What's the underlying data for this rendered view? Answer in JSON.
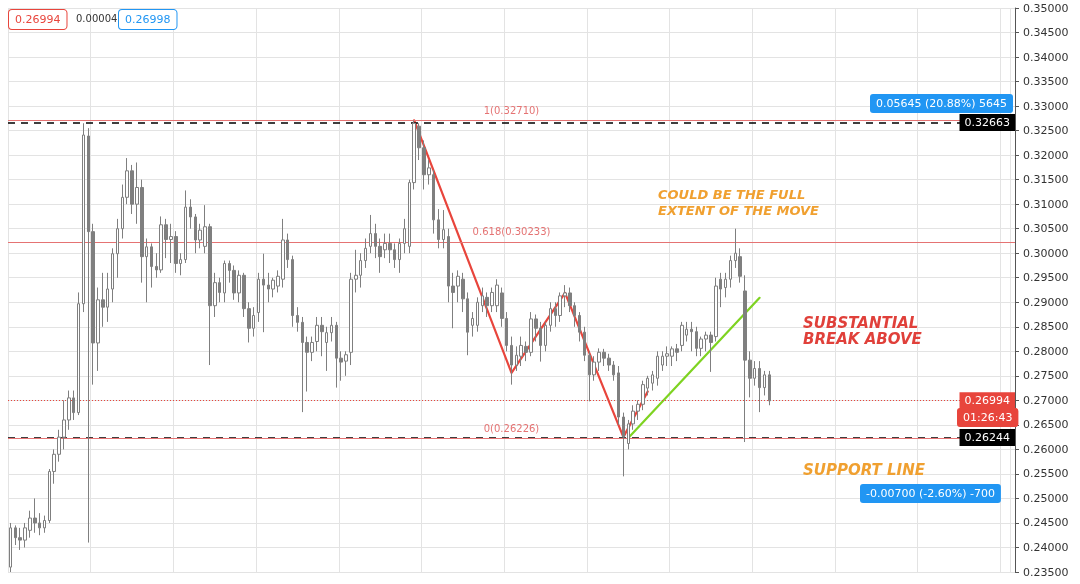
{
  "chart_data": {
    "type": "candlestick",
    "categories": [
      null,
      null,
      null,
      null,
      null,
      null,
      null,
      null,
      null,
      null,
      null,
      null,
      null,
      null,
      null,
      null,
      null,
      null,
      null,
      null,
      null,
      null,
      null,
      null,
      null,
      null,
      null,
      null,
      null,
      null,
      null,
      null,
      null,
      null,
      null,
      null,
      null,
      null,
      null,
      null,
      null,
      null,
      null,
      null,
      null,
      null,
      null,
      null,
      null,
      null,
      null,
      null,
      null,
      null,
      null,
      null,
      null,
      null,
      null,
      null,
      null,
      null,
      null,
      null,
      null,
      null,
      null,
      null,
      null,
      null,
      null,
      null,
      null,
      null,
      null,
      null,
      null,
      null,
      null,
      null,
      null,
      null,
      null,
      null,
      null,
      null,
      null,
      null,
      null,
      null,
      null,
      null,
      null,
      null,
      null,
      null,
      null,
      null,
      null,
      null,
      null,
      null,
      null,
      null,
      null,
      null,
      null,
      null,
      null,
      null,
      null,
      null,
      null,
      null,
      null,
      null,
      null,
      null,
      null,
      null,
      null,
      null,
      null,
      null,
      null,
      null,
      null,
      null,
      null,
      null,
      null,
      null,
      null,
      null,
      null,
      null,
      null,
      null,
      null,
      null,
      null,
      null,
      null,
      null,
      null,
      null,
      null,
      null,
      null,
      null,
      null,
      null,
      null,
      null,
      null,
      null,
      null,
      null,
      null,
      null,
      null,
      null,
      null,
      null,
      null,
      null,
      null,
      null,
      null,
      null,
      null,
      null,
      null,
      null,
      null,
      null,
      null,
      null,
      null,
      null,
      null,
      null,
      null,
      null,
      null,
      null,
      null,
      null,
      null,
      null,
      null,
      null,
      null,
      null,
      null,
      null,
      null,
      null,
      null,
      null,
      null,
      null,
      null,
      null,
      null,
      null,
      null
    ],
    "series": [
      {
        "type": "candlestick",
        "color": "#7f7f7f",
        "ohlc": [
          [
            0.236,
            0.245,
            0.235,
            0.244
          ],
          [
            0.244,
            0.2445,
            0.2405,
            0.242
          ],
          [
            0.242,
            0.244,
            0.2395,
            0.2415
          ],
          [
            0.2415,
            0.245,
            0.24,
            0.244
          ],
          [
            0.2435,
            0.2475,
            0.242,
            0.246
          ],
          [
            0.246,
            0.25,
            0.243,
            0.245
          ],
          [
            0.245,
            0.247,
            0.2425,
            0.244
          ],
          [
            0.244,
            0.2465,
            0.243,
            0.2455
          ],
          [
            0.2455,
            0.256,
            0.245,
            0.2555
          ],
          [
            0.2555,
            0.26,
            0.253,
            0.259
          ],
          [
            0.259,
            0.264,
            0.2575,
            0.2625
          ],
          [
            0.2625,
            0.27,
            0.26,
            0.266
          ],
          [
            0.266,
            0.272,
            0.264,
            0.2705
          ],
          [
            0.2705,
            0.272,
            0.266,
            0.2675
          ],
          [
            0.2675,
            0.292,
            0.267,
            0.2897
          ],
          [
            0.2897,
            0.3265,
            0.288,
            0.3241
          ],
          [
            0.3239,
            0.3255,
            0.241,
            0.3044
          ],
          [
            0.3044,
            0.306,
            0.2732,
            0.2817
          ],
          [
            0.2817,
            0.293,
            0.276,
            0.2905
          ],
          [
            0.2905,
            0.296,
            0.285,
            0.289
          ],
          [
            0.289,
            0.296,
            0.286,
            0.2927
          ],
          [
            0.2927,
            0.301,
            0.29,
            0.2999
          ],
          [
            0.2999,
            0.307,
            0.295,
            0.305
          ],
          [
            0.305,
            0.314,
            0.303,
            0.3114
          ],
          [
            0.3114,
            0.3194,
            0.31,
            0.3168
          ],
          [
            0.3168,
            0.318,
            0.308,
            0.31
          ],
          [
            0.31,
            0.3185,
            0.306,
            0.3134
          ],
          [
            0.3134,
            0.315,
            0.294,
            0.2993
          ],
          [
            0.2993,
            0.303,
            0.29,
            0.3013
          ],
          [
            0.3013,
            0.302,
            0.293,
            0.2973
          ],
          [
            0.2973,
            0.3,
            0.295,
            0.2966
          ],
          [
            0.2966,
            0.3075,
            0.296,
            0.3058
          ],
          [
            0.3058,
            0.307,
            0.299,
            0.3028
          ],
          [
            0.3028,
            0.306,
            0.298,
            0.3034
          ],
          [
            0.3034,
            0.3045,
            0.296,
            0.2979
          ],
          [
            0.2979,
            0.3,
            0.2955,
            0.2987
          ],
          [
            0.2987,
            0.3128,
            0.298,
            0.3094
          ],
          [
            0.3094,
            0.311,
            0.305,
            0.3074
          ],
          [
            0.3074,
            0.308,
            0.3,
            0.3027
          ],
          [
            0.3027,
            0.306,
            0.301,
            0.3047
          ],
          [
            0.3014,
            0.3098,
            0.3,
            0.3054
          ],
          [
            0.3054,
            0.306,
            0.2772,
            0.2893
          ],
          [
            0.2893,
            0.296,
            0.287,
            0.294
          ],
          [
            0.294,
            0.295,
            0.29,
            0.292
          ],
          [
            0.2919,
            0.2985,
            0.29,
            0.2979
          ],
          [
            0.2979,
            0.2985,
            0.294,
            0.2965
          ],
          [
            0.2965,
            0.2975,
            0.2905,
            0.2919
          ],
          [
            0.2919,
            0.2965,
            0.29,
            0.2955
          ],
          [
            0.2955,
            0.296,
            0.287,
            0.2887
          ],
          [
            0.2887,
            0.29,
            0.2818,
            0.2847
          ],
          [
            0.2847,
            0.289,
            0.283,
            0.2873
          ],
          [
            0.2879,
            0.296,
            0.286,
            0.2947
          ],
          [
            0.2947,
            0.2999,
            0.2839,
            0.2935
          ],
          [
            0.2935,
            0.296,
            0.29,
            0.2927
          ],
          [
            0.2927,
            0.295,
            0.291,
            0.2945
          ],
          [
            0.2933,
            0.2965,
            0.292,
            0.2953
          ],
          [
            0.2947,
            0.307,
            0.293,
            0.3027
          ],
          [
            0.3027,
            0.304,
            0.297,
            0.2987
          ],
          [
            0.2987,
            0.2995,
            0.285,
            0.2873
          ],
          [
            0.2873,
            0.289,
            0.284,
            0.2859
          ],
          [
            0.2859,
            0.287,
            0.2676,
            0.2818
          ],
          [
            0.2818,
            0.283,
            0.2718,
            0.2798
          ],
          [
            0.2798,
            0.283,
            0.278,
            0.2818
          ],
          [
            0.282,
            0.287,
            0.28,
            0.2853
          ],
          [
            0.2853,
            0.287,
            0.279,
            0.284
          ],
          [
            0.2818,
            0.285,
            0.276,
            0.2838
          ],
          [
            0.2838,
            0.287,
            0.282,
            0.2853
          ],
          [
            0.2853,
            0.286,
            0.2726,
            0.2786
          ],
          [
            0.2786,
            0.28,
            0.274,
            0.2778
          ],
          [
            0.278,
            0.28,
            0.275,
            0.2793
          ],
          [
            0.2798,
            0.296,
            0.2772,
            0.2947
          ],
          [
            0.2947,
            0.3007,
            0.292,
            0.2955
          ],
          [
            0.2955,
            0.3,
            0.293,
            0.2985
          ],
          [
            0.2985,
            0.303,
            0.297,
            0.301
          ],
          [
            0.3014,
            0.3078,
            0.3,
            0.304
          ],
          [
            0.304,
            0.306,
            0.299,
            0.3014
          ],
          [
            0.3014,
            0.303,
            0.296,
            0.2993
          ],
          [
            0.3007,
            0.304,
            0.299,
            0.302
          ],
          [
            0.302,
            0.304,
            0.298,
            0.3007
          ],
          [
            0.3007,
            0.302,
            0.297,
            0.2987
          ],
          [
            0.2987,
            0.303,
            0.296,
            0.302
          ],
          [
            0.302,
            0.307,
            0.3,
            0.305
          ],
          [
            0.3014,
            0.315,
            0.3,
            0.3144
          ],
          [
            0.3144,
            0.3271,
            0.313,
            0.3265
          ],
          [
            0.3259,
            0.3265,
            0.319,
            0.3215
          ],
          [
            0.3215,
            0.323,
            0.313,
            0.316
          ],
          [
            0.316,
            0.319,
            0.314,
            0.3174
          ],
          [
            0.316,
            0.317,
            0.304,
            0.3068
          ],
          [
            0.3068,
            0.309,
            0.301,
            0.3028
          ],
          [
            0.3028,
            0.3088,
            0.301,
            0.3048
          ],
          [
            0.3034,
            0.305,
            0.29,
            0.2933
          ],
          [
            0.2933,
            0.296,
            0.2847,
            0.292
          ],
          [
            0.2933,
            0.2965,
            0.29,
            0.2953
          ],
          [
            0.2947,
            0.296,
            0.288,
            0.2907
          ],
          [
            0.2907,
            0.292,
            0.2792,
            0.2839
          ],
          [
            0.2853,
            0.288,
            0.283,
            0.2867
          ],
          [
            0.2853,
            0.291,
            0.284,
            0.29
          ],
          [
            0.2893,
            0.293,
            0.288,
            0.2913
          ],
          [
            0.291,
            0.292,
            0.287,
            0.2893
          ],
          [
            0.2893,
            0.293,
            0.288,
            0.292
          ],
          [
            0.2893,
            0.2947,
            0.288,
            0.2935
          ],
          [
            0.2919,
            0.293,
            0.285,
            0.2867
          ],
          [
            0.2867,
            0.288,
            0.28,
            0.2812
          ],
          [
            0.2812,
            0.283,
            0.2732,
            0.2772
          ],
          [
            0.2772,
            0.281,
            0.276,
            0.2792
          ],
          [
            0.279,
            0.283,
            0.277,
            0.2812
          ],
          [
            0.281,
            0.282,
            0.278,
            0.2798
          ],
          [
            0.2798,
            0.288,
            0.279,
            0.2866
          ],
          [
            0.2866,
            0.2875,
            0.282,
            0.2847
          ],
          [
            0.2847,
            0.286,
            0.2779,
            0.2812
          ],
          [
            0.2812,
            0.286,
            0.28,
            0.2853
          ],
          [
            0.2853,
            0.29,
            0.284,
            0.2887
          ],
          [
            0.2887,
            0.29,
            0.285,
            0.2873
          ],
          [
            0.2873,
            0.292,
            0.286,
            0.2913
          ],
          [
            0.2913,
            0.2935,
            0.289,
            0.2919
          ],
          [
            0.2919,
            0.293,
            0.288,
            0.2893
          ],
          [
            0.2893,
            0.29,
            0.285,
            0.2873
          ],
          [
            0.2873,
            0.288,
            0.282,
            0.2839
          ],
          [
            0.2839,
            0.285,
            0.278,
            0.2792
          ],
          [
            0.2792,
            0.28,
            0.2698,
            0.2752
          ],
          [
            0.2752,
            0.279,
            0.274,
            0.2778
          ],
          [
            0.2778,
            0.2806,
            0.276,
            0.2798
          ],
          [
            0.2798,
            0.2805,
            0.277,
            0.2786
          ],
          [
            0.2786,
            0.2795,
            0.276,
            0.2772
          ],
          [
            0.2772,
            0.278,
            0.274,
            0.2752
          ],
          [
            0.2756,
            0.277,
            0.265,
            0.2666
          ],
          [
            0.2666,
            0.2675,
            0.2545,
            0.2625
          ],
          [
            0.2612,
            0.266,
            0.26,
            0.2652
          ],
          [
            0.2652,
            0.269,
            0.264,
            0.2678
          ],
          [
            0.2678,
            0.27,
            0.266,
            0.2692
          ],
          [
            0.2692,
            0.274,
            0.268,
            0.2732
          ],
          [
            0.2725,
            0.275,
            0.271,
            0.2745
          ],
          [
            0.2735,
            0.276,
            0.272,
            0.2752
          ],
          [
            0.2745,
            0.28,
            0.273,
            0.279
          ],
          [
            0.2772,
            0.28,
            0.276,
            0.279
          ],
          [
            0.279,
            0.281,
            0.277,
            0.2795
          ],
          [
            0.279,
            0.281,
            0.277,
            0.2805
          ],
          [
            0.2805,
            0.2815,
            0.278,
            0.2798
          ],
          [
            0.2812,
            0.286,
            0.28,
            0.2853
          ],
          [
            0.2833,
            0.286,
            0.282,
            0.2845
          ],
          [
            0.2845,
            0.286,
            0.28,
            0.284
          ],
          [
            0.284,
            0.285,
            0.279,
            0.2806
          ],
          [
            0.2806,
            0.283,
            0.279,
            0.2825
          ],
          [
            0.2825,
            0.284,
            0.28,
            0.2833
          ],
          [
            0.2833,
            0.284,
            0.2758,
            0.2818
          ],
          [
            0.283,
            0.295,
            0.282,
            0.2933
          ],
          [
            0.2947,
            0.296,
            0.289,
            0.2927
          ],
          [
            0.293,
            0.296,
            0.291,
            0.2947
          ],
          [
            0.2947,
            0.2995,
            0.293,
            0.2985
          ],
          [
            0.2985,
            0.305,
            0.297,
            0.3
          ],
          [
            0.2993,
            0.301,
            0.294,
            0.2953
          ],
          [
            0.2923,
            0.2955,
            0.2615,
            0.2782
          ],
          [
            0.2782,
            0.28,
            0.2706,
            0.2745
          ],
          [
            0.2745,
            0.278,
            0.273,
            0.2765
          ],
          [
            0.2765,
            0.278,
            0.2676,
            0.2726
          ],
          [
            0.2726,
            0.276,
            0.271,
            0.2752
          ],
          [
            0.2752,
            0.276,
            0.269,
            0.2699
          ],
          null,
          null,
          null,
          null,
          null,
          null,
          null,
          null,
          null,
          null,
          null,
          null,
          null,
          null,
          null,
          null,
          null,
          null,
          null,
          null,
          null,
          null,
          null,
          null,
          null,
          null,
          null,
          null,
          null,
          null,
          null,
          null,
          null,
          null,
          null,
          null,
          null,
          null,
          null,
          null,
          null,
          null,
          null,
          null,
          null,
          null,
          null,
          null,
          null,
          null
        ]
      },
      {
        "type": "line",
        "color": "#e8453c",
        "values": [
          null,
          null,
          null,
          null,
          null,
          null,
          null,
          null,
          null,
          null,
          null,
          null,
          null,
          null,
          null,
          null,
          null,
          null,
          null,
          null,
          null,
          null,
          null,
          null,
          null,
          null,
          null,
          null,
          null,
          null,
          null,
          null,
          null,
          null,
          null,
          null,
          null,
          null,
          null,
          null,
          null,
          null,
          null,
          null,
          null,
          null,
          null,
          null,
          null,
          null,
          null,
          null,
          null,
          null,
          null,
          null,
          null,
          null,
          null,
          null,
          null,
          null,
          null,
          null,
          null,
          null,
          null,
          null,
          null,
          null,
          null,
          null,
          null,
          null,
          null,
          null,
          null,
          null,
          null,
          null,
          null,
          null,
          null,
          0.3271,
          null,
          null,
          null,
          null,
          null,
          null,
          null,
          null,
          null,
          null,
          null,
          null,
          null,
          null,
          null,
          null,
          null,
          null,
          null,
          0.2756,
          null,
          null,
          null,
          null,
          null,
          null,
          null,
          null,
          null,
          null,
          0.2919,
          null,
          null,
          null,
          null,
          null,
          null,
          null,
          null,
          null,
          null,
          null,
          0.2625,
          null,
          null,
          null,
          null,
          0.2718,
          null,
          null,
          null,
          null,
          null,
          null,
          null,
          null,
          null,
          null,
          null,
          null,
          null,
          null,
          null,
          null,
          null,
          null,
          null,
          null,
          null,
          null,
          null,
          null,
          null,
          null,
          null,
          null,
          null,
          null,
          null,
          null,
          null,
          null,
          null,
          null,
          null,
          null,
          null,
          null,
          null,
          null,
          null,
          null,
          null,
          null,
          null,
          null,
          null,
          null,
          null,
          null,
          null,
          null,
          null,
          null,
          null,
          null,
          null,
          null,
          null,
          null,
          null,
          null,
          null,
          null,
          null,
          null,
          null,
          null,
          null,
          null,
          null,
          null,
          null
        ]
      },
      {
        "type": "line",
        "color": "#7ed321",
        "values": [
          null,
          null,
          null,
          null,
          null,
          null,
          null,
          null,
          null,
          null,
          null,
          null,
          null,
          null,
          null,
          null,
          null,
          null,
          null,
          null,
          null,
          null,
          null,
          null,
          null,
          null,
          null,
          null,
          null,
          null,
          null,
          null,
          null,
          null,
          null,
          null,
          null,
          null,
          null,
          null,
          null,
          null,
          null,
          null,
          null,
          null,
          null,
          null,
          null,
          null,
          null,
          null,
          null,
          null,
          null,
          null,
          null,
          null,
          null,
          null,
          null,
          null,
          null,
          null,
          null,
          null,
          null,
          null,
          null,
          null,
          null,
          null,
          null,
          null,
          null,
          null,
          null,
          null,
          null,
          null,
          null,
          null,
          null,
          null,
          null,
          null,
          null,
          null,
          null,
          null,
          null,
          null,
          null,
          null,
          null,
          null,
          null,
          null,
          null,
          null,
          null,
          null,
          null,
          null,
          null,
          null,
          null,
          null,
          null,
          null,
          null,
          null,
          null,
          null,
          null,
          null,
          null,
          null,
          null,
          null,
          null,
          null,
          null,
          null,
          null,
          null,
          null,
          0.2623,
          null,
          null,
          null,
          null,
          null,
          null,
          null,
          null,
          null,
          null,
          null,
          null,
          null,
          null,
          null,
          null,
          null,
          null,
          null,
          null,
          null,
          null,
          null,
          null,
          null,
          null,
          0.2909,
          null,
          null,
          null,
          null,
          null,
          null,
          null,
          null,
          null,
          null,
          null,
          null,
          null,
          null,
          null,
          null,
          null,
          null,
          null,
          null,
          null,
          null,
          null,
          null,
          null,
          null,
          null,
          null,
          null,
          null,
          null,
          null,
          null,
          null,
          null,
          null,
          null,
          null,
          null,
          null,
          null,
          null,
          null,
          null,
          null,
          null,
          null,
          null,
          null,
          null,
          null,
          null
        ]
      }
    ],
    "ylim": [
      0.235,
      0.35
    ],
    "yticks": [
      {
        "value": 0.235,
        "label": "0.23500"
      },
      {
        "value": 0.24,
        "label": "0.24000"
      },
      {
        "value": 0.245,
        "label": "0.24500"
      },
      {
        "value": 0.25,
        "label": "0.25000"
      },
      {
        "value": 0.255,
        "label": "0.25500"
      },
      {
        "value": 0.26,
        "label": "0.26000"
      },
      {
        "value": 0.265,
        "label": "0.26500"
      },
      {
        "value": 0.27,
        "label": "0.27000"
      },
      {
        "value": 0.275,
        "label": "0.27500"
      },
      {
        "value": 0.28,
        "label": "0.28000"
      },
      {
        "value": 0.285,
        "label": "0.28500"
      },
      {
        "value": 0.29,
        "label": "0.29000"
      },
      {
        "value": 0.295,
        "label": "0.29500"
      },
      {
        "value": 0.3,
        "label": "0.30000"
      },
      {
        "value": 0.305,
        "label": "0.30500"
      },
      {
        "value": 0.31,
        "label": "0.31000"
      },
      {
        "value": 0.315,
        "label": "0.31500"
      },
      {
        "value": 0.32,
        "label": "0.32000"
      },
      {
        "value": 0.325,
        "label": "0.32500"
      },
      {
        "value": 0.33,
        "label": "0.33000"
      },
      {
        "value": 0.335,
        "label": "0.33500"
      },
      {
        "value": 0.34,
        "label": "0.34000"
      },
      {
        "value": 0.345,
        "label": "0.34500"
      },
      {
        "value": 0.35,
        "label": "0.35000"
      }
    ],
    "tick_labels": "y",
    "grid": true,
    "ref_lines": [
      {
        "axis": "y",
        "value": 0.32663,
        "label": "0.32663",
        "color": "#000000",
        "line_style": "dashed"
      },
      {
        "axis": "y",
        "value": 0.26244,
        "label": "0.26244",
        "color": "#000000",
        "line_style": "dashed"
      },
      {
        "axis": "y",
        "value": 0.26994,
        "label": "0.26994",
        "color": "#e8453c",
        "line_style": "dotted"
      },
      {
        "axis": "y",
        "value": 0.3271,
        "label": "1(0.32710)",
        "color": "#e57373",
        "line_style": "solid"
      },
      {
        "axis": "y",
        "value": 0.30233,
        "label": "0.618(0.30233)",
        "color": "#e57373",
        "line_style": "solid"
      },
      {
        "axis": "y",
        "value": 0.26226,
        "label": "0(0.26226)",
        "color": "#e57373",
        "line_style": "solid"
      }
    ],
    "annotations": [
      "COULD BE THE FULL EXTENT OF THE MOVE",
      "SUBSTANTIAL BREAK ABOVE",
      "SUPPORT LINE",
      "0.05645 (20.88%) 5645",
      "-0.00700 (-2.60%) -700",
      "01:26:43",
      "0.26994",
      "0.00004",
      "0.26998"
    ]
  }
}
